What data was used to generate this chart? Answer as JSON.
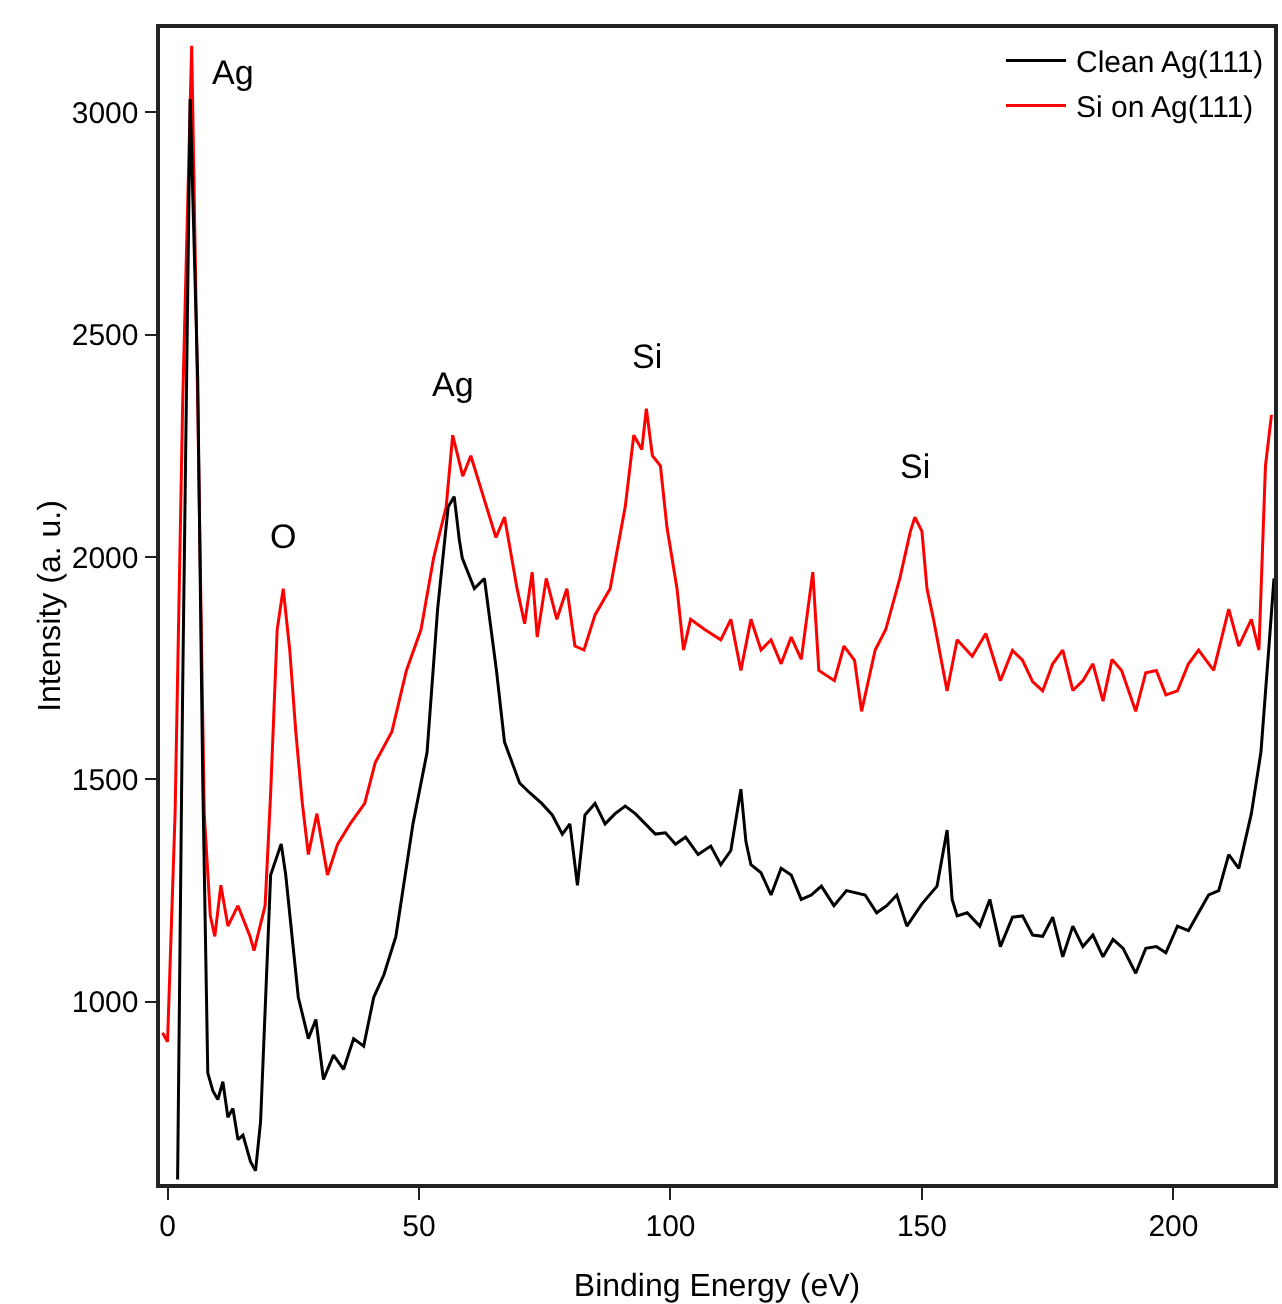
{
  "chart_data": {
    "type": "line",
    "xlabel": "Binding Energy (eV)",
    "ylabel": "Intensity (a. u.)",
    "xlim": [
      -1.5,
      220
    ],
    "xticks": [
      0,
      50,
      100,
      150,
      200
    ],
    "ylim": [
      590,
      3190
    ],
    "yticks": [
      1000,
      1500,
      2000,
      2500,
      3000
    ],
    "grid": false,
    "legend": "top right",
    "marker": "none",
    "line_style": "solid",
    "annotations": [
      {
        "text": "Ag",
        "x": 4.8,
        "y": 3150
      },
      {
        "text": "O",
        "x": 23,
        "y": 1929
      },
      {
        "text": "Ag",
        "x": 56.7,
        "y": 2274
      },
      {
        "text": "Si",
        "x": 95.2,
        "y": 2334
      },
      {
        "text": "Si",
        "x": 148.6,
        "y": 2090
      }
    ],
    "series": [
      {
        "name": "Clean Ag(111)",
        "color": "#000000",
        "x": [
          2,
          3,
          4.5,
          6,
          7,
          8,
          9,
          10,
          11,
          12,
          13,
          14,
          15,
          16.5,
          17.5,
          18.5,
          20.5,
          22.6,
          23.5,
          26,
          28,
          29.5,
          31,
          33,
          35,
          37,
          39,
          41,
          43,
          45.4,
          48.8,
          51.6,
          53.7,
          55.8,
          57,
          58,
          58.6,
          61,
          63,
          65.4,
          67,
          70,
          72,
          74.4,
          76.5,
          78.5,
          80,
          81.5,
          83,
          85,
          87,
          89,
          91,
          93,
          95,
          97,
          99,
          101,
          103,
          105.5,
          108,
          110,
          112,
          114,
          115,
          116,
          118,
          120,
          122,
          124,
          126,
          128,
          130,
          132.5,
          135,
          138.7,
          141,
          143,
          145,
          147,
          150,
          153,
          155,
          156,
          157,
          159,
          161.5,
          163.5,
          165.6,
          168,
          170,
          172,
          174,
          176,
          178,
          180,
          182,
          184,
          186,
          188,
          190,
          192.5,
          194.5,
          196.6,
          198.5,
          200.8,
          203,
          205,
          207,
          209,
          211,
          213,
          215.5,
          217.4,
          219,
          220
        ],
        "values": [
          600,
          1700,
          3030,
          2400,
          1500,
          840,
          800,
          780,
          820,
          740,
          760,
          690,
          700,
          640,
          620,
          730,
          1285,
          1355,
          1285,
          1010,
          917,
          960,
          825,
          880,
          848,
          917,
          900,
          1010,
          1060,
          1147,
          1400,
          1561,
          1883,
          2113,
          2136,
          2040,
          1998,
          1929,
          1952,
          1745,
          1584,
          1492,
          1470,
          1446,
          1420,
          1377,
          1400,
          1262,
          1420,
          1446,
          1400,
          1423,
          1440,
          1423,
          1400,
          1377,
          1380,
          1354,
          1370,
          1331,
          1350,
          1308,
          1340,
          1478,
          1360,
          1308,
          1290,
          1240,
          1300,
          1285,
          1230,
          1240,
          1260,
          1216,
          1250,
          1240,
          1200,
          1216,
          1240,
          1170,
          1220,
          1260,
          1386,
          1230,
          1193,
          1200,
          1170,
          1230,
          1124,
          1190,
          1193,
          1150,
          1147,
          1190,
          1101,
          1170,
          1124,
          1150,
          1101,
          1140,
          1120,
          1064,
          1120,
          1124,
          1110,
          1170,
          1160,
          1200,
          1240,
          1250,
          1331,
          1300,
          1423,
          1561,
          1800,
          1952
        ]
      },
      {
        "name": "Si on Ag(111)",
        "color": "#ff0000",
        "x": [
          -1,
          0,
          1.5,
          3,
          4.8,
          6,
          7.3,
          8.5,
          9.4,
          10.6,
          12,
          14,
          16.4,
          17.2,
          19.4,
          20.5,
          21.8,
          23,
          24.3,
          25.5,
          26.8,
          28,
          29.7,
          31.8,
          33.8,
          36.3,
          39.2,
          41.3,
          44.6,
          47.5,
          50.4,
          52.9,
          55.4,
          56.7,
          58.7,
          60.3,
          62.8,
          65.3,
          67,
          69.5,
          71,
          72.5,
          73.5,
          75.3,
          77.4,
          79.4,
          81,
          82.8,
          85,
          88,
          91,
          92.7,
          94.3,
          95.2,
          96.4,
          98,
          99.3,
          101.3,
          102.6,
          104,
          106.8,
          110,
          112,
          114,
          116,
          118,
          120,
          122,
          124,
          126,
          128.3,
          129.5,
          132.6,
          134.5,
          136.6,
          138,
          140.7,
          142.8,
          145.6,
          147.7,
          148.6,
          150,
          151,
          152.3,
          155,
          157,
          160,
          162.7,
          165.6,
          168,
          170,
          172,
          174,
          176,
          178,
          180,
          182,
          184,
          186,
          187.8,
          189.7,
          192.5,
          194.5,
          196.6,
          198.5,
          200.8,
          203,
          205,
          208,
          211,
          213,
          215.5,
          217,
          218.3,
          219.5
        ],
        "values": [
          930,
          910,
          1423,
          2343,
          3150,
          2343,
          1423,
          1193,
          1147,
          1262,
          1170,
          1216,
          1147,
          1115,
          1216,
          1469,
          1837,
          1929,
          1791,
          1607,
          1446,
          1331,
          1423,
          1285,
          1354,
          1400,
          1446,
          1538,
          1607,
          1745,
          1837,
          1998,
          2113,
          2274,
          2182,
          2228,
          2136,
          2044,
          2090,
          1929,
          1850,
          1966,
          1820,
          1952,
          1860,
          1929,
          1800,
          1791,
          1870,
          1929,
          2113,
          2274,
          2242,
          2334,
          2228,
          2205,
          2067,
          1929,
          1791,
          1860,
          1837,
          1814,
          1860,
          1745,
          1860,
          1791,
          1814,
          1760,
          1820,
          1770,
          1966,
          1745,
          1722,
          1800,
          1768,
          1653,
          1791,
          1837,
          1952,
          2058,
          2090,
          2058,
          1929,
          1860,
          1699,
          1814,
          1777,
          1828,
          1722,
          1790,
          1768,
          1720,
          1699,
          1760,
          1791,
          1700,
          1722,
          1760,
          1676,
          1770,
          1745,
          1653,
          1740,
          1745,
          1690,
          1699,
          1760,
          1791,
          1745,
          1883,
          1800,
          1860,
          1791,
          2205,
          2320
        ]
      }
    ]
  }
}
